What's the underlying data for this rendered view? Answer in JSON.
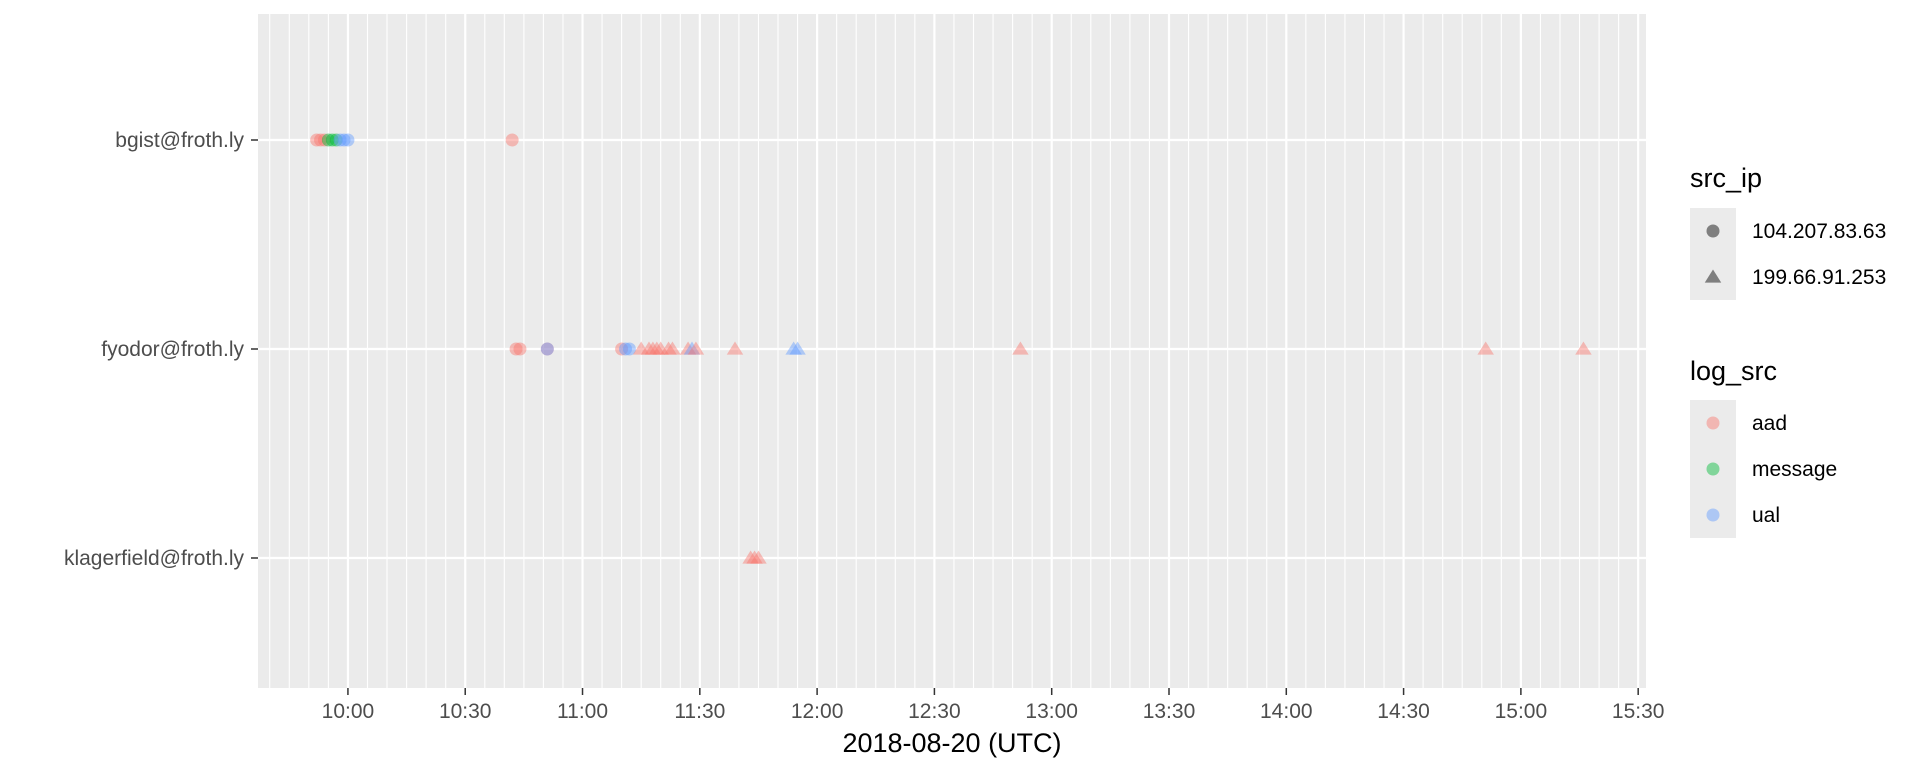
{
  "chart_data": {
    "type": "scatter",
    "title": "",
    "xlabel": "2018-08-20 (UTC)",
    "ylabel": "",
    "x_ticks": [
      "10:00",
      "10:30",
      "11:00",
      "11:30",
      "12:00",
      "12:30",
      "13:00",
      "13:30",
      "14:00",
      "14:30",
      "15:00",
      "15:30"
    ],
    "xlim": [
      "09:37",
      "15:32"
    ],
    "categories": [
      "bgist@froth.ly",
      "fyodor@froth.ly",
      "klagerfield@froth.ly"
    ],
    "background": "#ebebeb",
    "grid": true,
    "legend_position": "right",
    "legends": [
      {
        "title": "src_ip",
        "entries": [
          {
            "label": "104.207.83.63",
            "shape": "circle",
            "color": "#7f7f7f"
          },
          {
            "label": "199.66.91.253",
            "shape": "triangle",
            "color": "#7f7f7f"
          }
        ]
      },
      {
        "title": "log_src",
        "entries": [
          {
            "label": "aad",
            "shape": "circle",
            "color": "#f8766d"
          },
          {
            "label": "message",
            "shape": "circle",
            "color": "#00ba38"
          },
          {
            "label": "ual",
            "shape": "circle",
            "color": "#619cff"
          }
        ]
      }
    ],
    "points": [
      {
        "user": "bgist@froth.ly",
        "time": "09:52",
        "src_ip": "104.207.83.63",
        "log_src": "aad"
      },
      {
        "user": "bgist@froth.ly",
        "time": "09:53",
        "src_ip": "104.207.83.63",
        "log_src": "aad"
      },
      {
        "user": "bgist@froth.ly",
        "time": "09:54",
        "src_ip": "104.207.83.63",
        "log_src": "aad"
      },
      {
        "user": "bgist@froth.ly",
        "time": "09:55",
        "src_ip": "104.207.83.63",
        "log_src": "message"
      },
      {
        "user": "bgist@froth.ly",
        "time": "09:56",
        "src_ip": "104.207.83.63",
        "log_src": "message"
      },
      {
        "user": "bgist@froth.ly",
        "time": "09:57",
        "src_ip": "104.207.83.63",
        "log_src": "message"
      },
      {
        "user": "bgist@froth.ly",
        "time": "09:58",
        "src_ip": "104.207.83.63",
        "log_src": "ual"
      },
      {
        "user": "bgist@froth.ly",
        "time": "09:59",
        "src_ip": "104.207.83.63",
        "log_src": "ual"
      },
      {
        "user": "bgist@froth.ly",
        "time": "10:00",
        "src_ip": "104.207.83.63",
        "log_src": "ual"
      },
      {
        "user": "bgist@froth.ly",
        "time": "10:42",
        "src_ip": "104.207.83.63",
        "log_src": "aad"
      },
      {
        "user": "fyodor@froth.ly",
        "time": "10:43",
        "src_ip": "104.207.83.63",
        "log_src": "aad"
      },
      {
        "user": "fyodor@froth.ly",
        "time": "10:44",
        "src_ip": "104.207.83.63",
        "log_src": "aad"
      },
      {
        "user": "fyodor@froth.ly",
        "time": "10:51",
        "src_ip": "104.207.83.63",
        "log_src": "aad"
      },
      {
        "user": "fyodor@froth.ly",
        "time": "10:51",
        "src_ip": "104.207.83.63",
        "log_src": "ual"
      },
      {
        "user": "fyodor@froth.ly",
        "time": "11:10",
        "src_ip": "104.207.83.63",
        "log_src": "aad"
      },
      {
        "user": "fyodor@froth.ly",
        "time": "11:11",
        "src_ip": "104.207.83.63",
        "log_src": "ual"
      },
      {
        "user": "fyodor@froth.ly",
        "time": "11:12",
        "src_ip": "104.207.83.63",
        "log_src": "ual"
      },
      {
        "user": "fyodor@froth.ly",
        "time": "11:15",
        "src_ip": "199.66.91.253",
        "log_src": "aad"
      },
      {
        "user": "fyodor@froth.ly",
        "time": "11:17",
        "src_ip": "199.66.91.253",
        "log_src": "aad"
      },
      {
        "user": "fyodor@froth.ly",
        "time": "11:18",
        "src_ip": "199.66.91.253",
        "log_src": "aad"
      },
      {
        "user": "fyodor@froth.ly",
        "time": "11:19",
        "src_ip": "199.66.91.253",
        "log_src": "aad"
      },
      {
        "user": "fyodor@froth.ly",
        "time": "11:20",
        "src_ip": "199.66.91.253",
        "log_src": "aad"
      },
      {
        "user": "fyodor@froth.ly",
        "time": "11:22",
        "src_ip": "199.66.91.253",
        "log_src": "aad"
      },
      {
        "user": "fyodor@froth.ly",
        "time": "11:23",
        "src_ip": "199.66.91.253",
        "log_src": "aad"
      },
      {
        "user": "fyodor@froth.ly",
        "time": "11:27",
        "src_ip": "199.66.91.253",
        "log_src": "aad"
      },
      {
        "user": "fyodor@froth.ly",
        "time": "11:28",
        "src_ip": "199.66.91.253",
        "log_src": "ual"
      },
      {
        "user": "fyodor@froth.ly",
        "time": "11:29",
        "src_ip": "199.66.91.253",
        "log_src": "aad"
      },
      {
        "user": "fyodor@froth.ly",
        "time": "11:39",
        "src_ip": "199.66.91.253",
        "log_src": "aad"
      },
      {
        "user": "fyodor@froth.ly",
        "time": "11:54",
        "src_ip": "199.66.91.253",
        "log_src": "ual"
      },
      {
        "user": "fyodor@froth.ly",
        "time": "11:55",
        "src_ip": "199.66.91.253",
        "log_src": "ual"
      },
      {
        "user": "fyodor@froth.ly",
        "time": "12:52",
        "src_ip": "199.66.91.253",
        "log_src": "aad"
      },
      {
        "user": "fyodor@froth.ly",
        "time": "14:51",
        "src_ip": "199.66.91.253",
        "log_src": "aad"
      },
      {
        "user": "fyodor@froth.ly",
        "time": "15:16",
        "src_ip": "199.66.91.253",
        "log_src": "aad"
      },
      {
        "user": "klagerfield@froth.ly",
        "time": "11:43",
        "src_ip": "199.66.91.253",
        "log_src": "aad"
      },
      {
        "user": "klagerfield@froth.ly",
        "time": "11:44",
        "src_ip": "199.66.91.253",
        "log_src": "aad"
      },
      {
        "user": "klagerfield@froth.ly",
        "time": "11:45",
        "src_ip": "199.66.91.253",
        "log_src": "aad"
      }
    ]
  }
}
